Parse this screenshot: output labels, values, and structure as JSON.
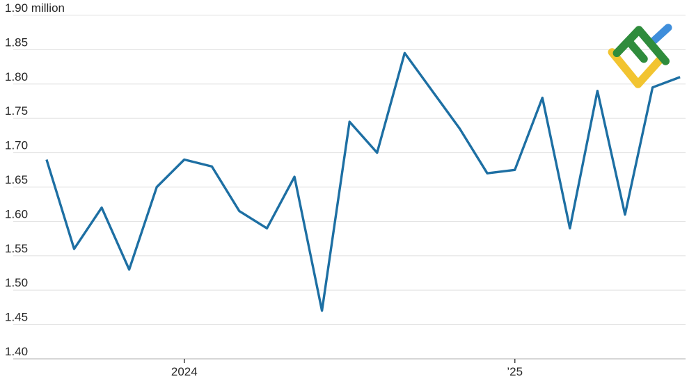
{
  "chart_data": {
    "type": "line",
    "title": "",
    "xlabel": "",
    "ylabel": "million",
    "x": [
      "2023-08",
      "2023-09",
      "2023-10",
      "2023-11",
      "2023-12",
      "2024-01",
      "2024-02",
      "2024-03",
      "2024-04",
      "2024-05",
      "2024-06",
      "2024-07",
      "2024-08",
      "2024-09",
      "2024-10",
      "2024-11",
      "2024-12",
      "2025-01",
      "2025-02",
      "2025-03",
      "2025-04",
      "2025-05",
      "2025-06",
      "2025-07"
    ],
    "values": [
      1.69,
      1.56,
      1.62,
      1.53,
      1.65,
      1.69,
      1.68,
      1.615,
      1.59,
      1.665,
      1.47,
      1.745,
      1.7,
      1.845,
      1.79,
      1.735,
      1.67,
      1.675,
      1.78,
      1.59,
      1.79,
      1.61,
      1.795,
      1.81
    ],
    "ylim": [
      1.4,
      1.9
    ],
    "y_tick_step": 0.05,
    "y_tick_labels": [
      "1.90 million",
      "1.85",
      "1.80",
      "1.75",
      "1.70",
      "1.65",
      "1.60",
      "1.55",
      "1.50",
      "1.45",
      "1.40"
    ],
    "x_ticks": [
      {
        "month_index": 5,
        "label": "2024"
      },
      {
        "month_index": 17,
        "label": "’25"
      }
    ],
    "grid": "horizontal",
    "legend": "none",
    "line_color": "#1d6fa3",
    "grid_color": "#e4e4e4",
    "axis_color": "#c9c9c9",
    "tick_color": "#4a4a4a",
    "text_color": "#262626"
  },
  "logo": {
    "name": "LiteFinance",
    "colors": {
      "green": "#2f8c3c",
      "blue": "#3f8edb",
      "yellow": "#f2c430"
    }
  }
}
